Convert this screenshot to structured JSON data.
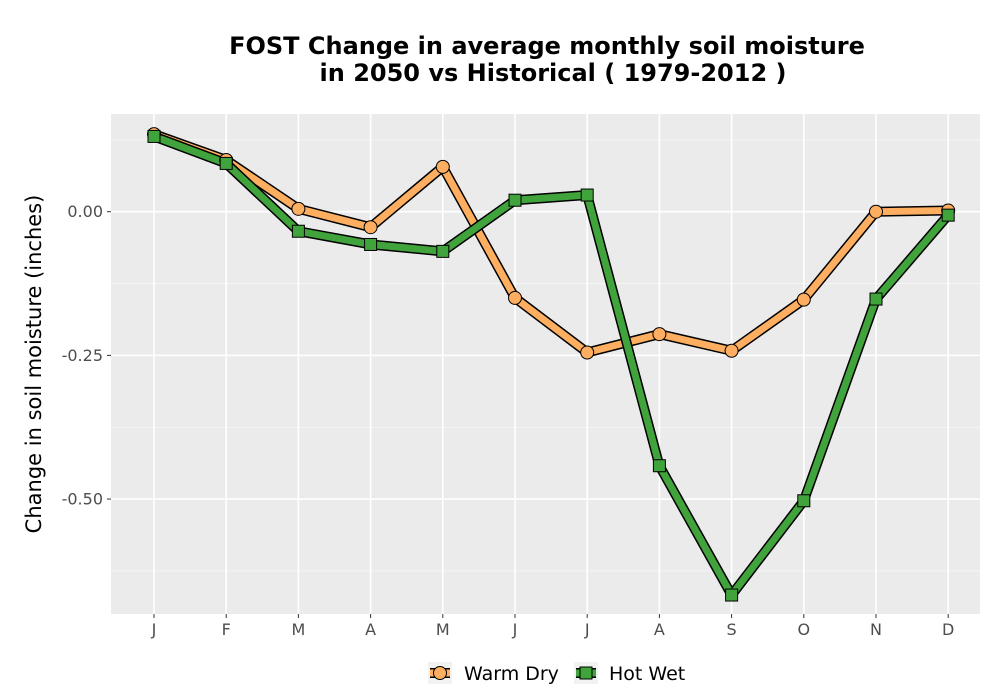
{
  "chart_data": {
    "type": "line",
    "title_line1": "FOST  Change in average monthly soil moisture",
    "title_line2": "in 2050 vs Historical ( 1979-2012 )",
    "xlabel": "",
    "ylabel": "Change in soil moisture (inches)",
    "categories": [
      "J",
      "F",
      "M",
      "A",
      "M",
      "J",
      "J",
      "A",
      "S",
      "O",
      "N",
      "D"
    ],
    "ylim": [
      -0.7,
      0.17
    ],
    "yticks": [
      0.0,
      -0.25,
      -0.5
    ],
    "ytick_labels": [
      "0.00",
      "-0.25",
      "-0.50"
    ],
    "grid": true,
    "legend_position": "bottom",
    "series": [
      {
        "name": "Warm Dry",
        "color": "#FDAE61",
        "marker": "circle",
        "values": [
          0.135,
          0.09,
          0.005,
          -0.027,
          0.078,
          -0.15,
          -0.245,
          -0.213,
          -0.242,
          -0.153,
          0.0,
          0.002
        ]
      },
      {
        "name": "Hot Wet",
        "color": "#41A33C",
        "marker": "square",
        "values": [
          0.131,
          0.084,
          -0.034,
          -0.057,
          -0.069,
          0.02,
          0.029,
          -0.442,
          -0.667,
          -0.503,
          -0.152,
          -0.006
        ]
      }
    ]
  }
}
